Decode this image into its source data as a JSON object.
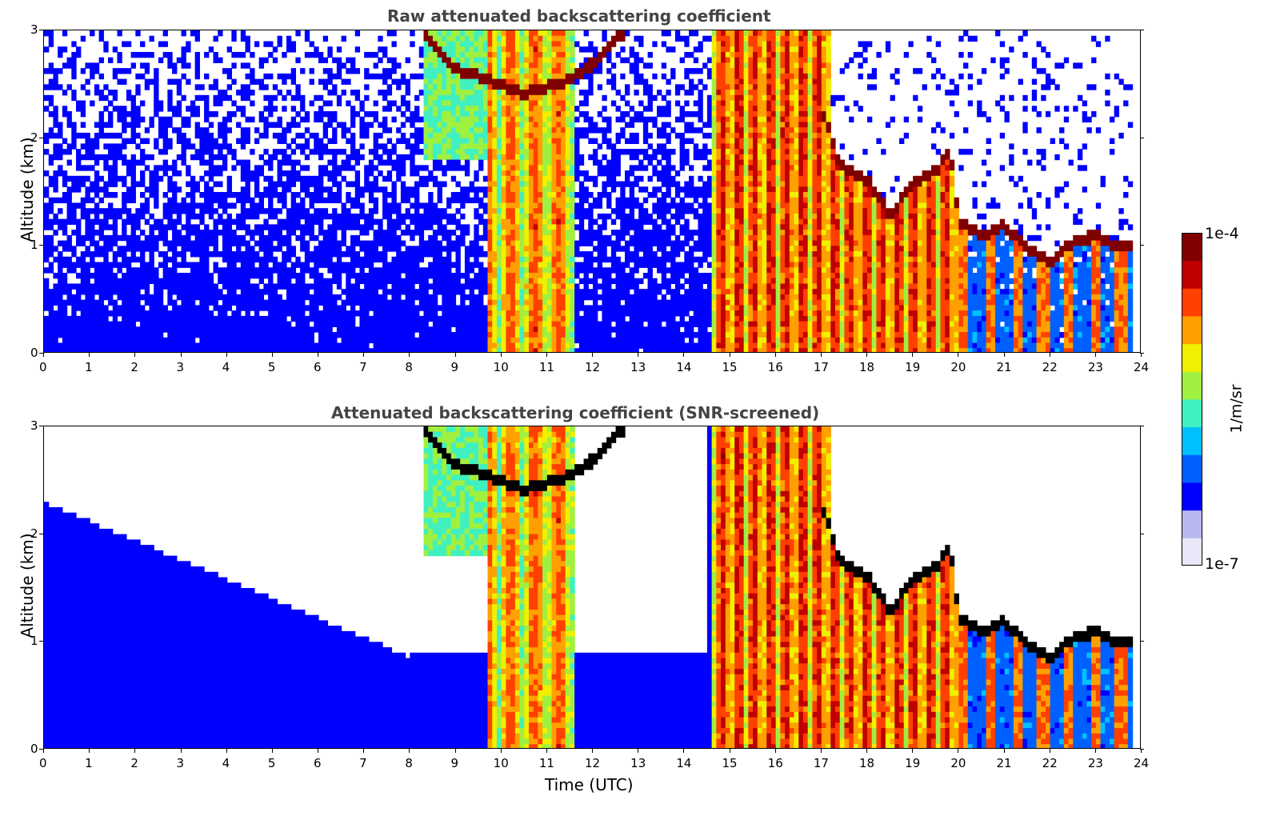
{
  "chart_data": [
    {
      "type": "heatmap",
      "title": "Raw attenuated backscattering coefficient",
      "xlabel": "",
      "ylabel": "Altitude (km)",
      "xlim": [
        0,
        24
      ],
      "ylim": [
        0,
        3
      ],
      "xticks": [
        "0",
        "1",
        "2",
        "3",
        "4",
        "5",
        "6",
        "7",
        "8",
        "9",
        "10",
        "11",
        "12",
        "13",
        "14",
        "15",
        "16",
        "17",
        "18",
        "19",
        "20",
        "21",
        "22",
        "23",
        "24"
      ],
      "yticks": [
        "0",
        "1",
        "2",
        "3"
      ],
      "cloud_base_km": [
        {
          "time": 8.3,
          "alt": 3.0
        },
        {
          "time": 9.0,
          "alt": 2.65
        },
        {
          "time": 9.5,
          "alt": 2.58
        },
        {
          "time": 10.0,
          "alt": 2.5
        },
        {
          "time": 10.5,
          "alt": 2.42
        },
        {
          "time": 11.0,
          "alt": 2.48
        },
        {
          "time": 11.5,
          "alt": 2.55
        },
        {
          "time": 12.0,
          "alt": 2.7
        },
        {
          "time": 12.7,
          "alt": 3.0
        },
        {
          "time": 17.0,
          "alt": 2.3
        },
        {
          "time": 17.4,
          "alt": 1.75
        },
        {
          "time": 18.0,
          "alt": 1.62
        },
        {
          "time": 18.5,
          "alt": 1.3
        },
        {
          "time": 19.0,
          "alt": 1.58
        },
        {
          "time": 19.5,
          "alt": 1.7
        },
        {
          "time": 19.8,
          "alt": 1.9
        },
        {
          "time": 20.0,
          "alt": 1.25
        },
        {
          "time": 20.5,
          "alt": 1.1
        },
        {
          "time": 21.0,
          "alt": 1.2
        },
        {
          "time": 21.5,
          "alt": 0.98
        },
        {
          "time": 22.0,
          "alt": 0.85
        },
        {
          "time": 22.5,
          "alt": 1.05
        },
        {
          "time": 23.0,
          "alt": 1.1
        },
        {
          "time": 23.5,
          "alt": 1.0
        },
        {
          "time": 23.8,
          "alt": 1.0
        }
      ]
    },
    {
      "type": "heatmap",
      "title": "Attenuated backscattering coefficient (SNR-screened)",
      "xlabel": "Time (UTC)",
      "ylabel": "Altitude (km)",
      "xlim": [
        0,
        24
      ],
      "ylim": [
        0,
        3
      ],
      "xticks": [
        "0",
        "1",
        "2",
        "3",
        "4",
        "5",
        "6",
        "7",
        "8",
        "9",
        "10",
        "11",
        "12",
        "13",
        "14",
        "15",
        "16",
        "17",
        "18",
        "19",
        "20",
        "21",
        "22",
        "23",
        "24"
      ],
      "yticks": [
        "0",
        "1",
        "2",
        "3"
      ]
    }
  ],
  "colorbar": {
    "label": "1/m/sr",
    "max_label": "1e-4",
    "min_label": "1e-7",
    "scale": "log",
    "colormap": [
      "#e8e8f8",
      "#b8b8f0",
      "#0000ff",
      "#0060ff",
      "#00c0ff",
      "#40f0c0",
      "#a0f040",
      "#f0f000",
      "#ffa000",
      "#ff4000",
      "#c00000",
      "#800000"
    ]
  }
}
